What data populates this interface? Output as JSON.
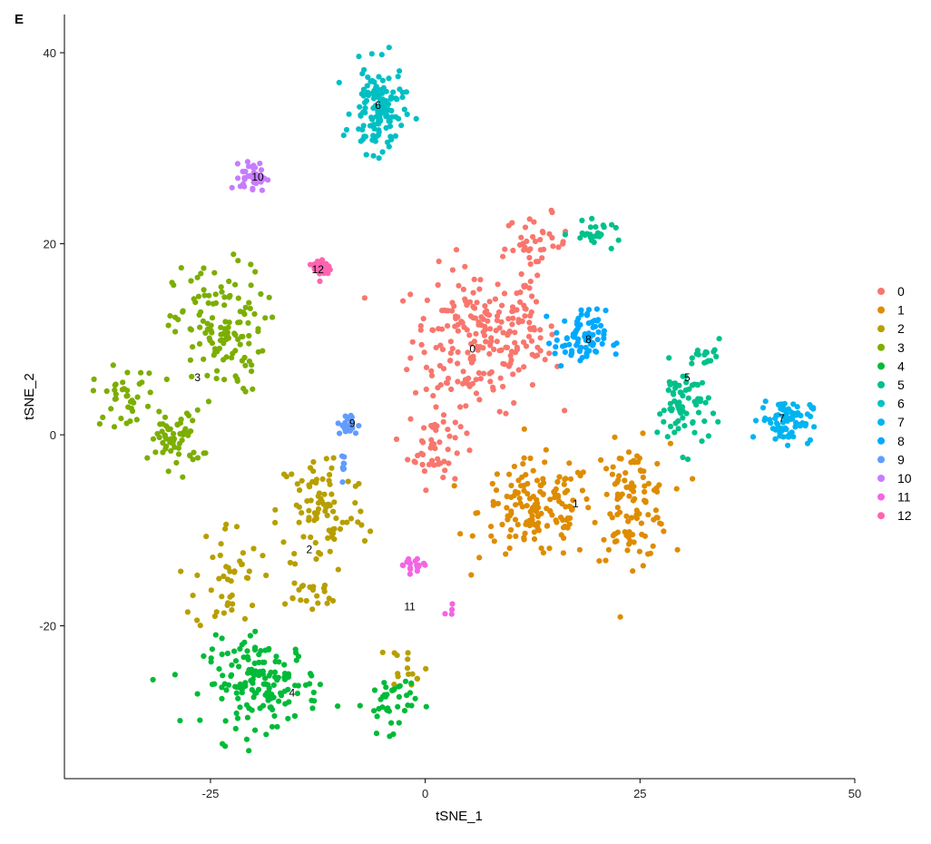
{
  "panel_label": "E",
  "chart_data": {
    "type": "scatter",
    "xlabel": "tSNE_1",
    "ylabel": "tSNE_2",
    "xlim": [
      -42,
      50
    ],
    "ylim": [
      -36,
      44
    ],
    "xticks": [
      -25,
      0,
      25,
      50
    ],
    "yticks": [
      -20,
      0,
      20,
      40
    ],
    "grid": false,
    "legend_position": "right",
    "legend": [
      "0",
      "1",
      "2",
      "3",
      "4",
      "5",
      "6",
      "7",
      "8",
      "9",
      "10",
      "11",
      "12"
    ],
    "point_labels": [
      {
        "label": "0",
        "x": 5.5,
        "y": 9.0
      },
      {
        "label": "1",
        "x": 17.5,
        "y": -7.2
      },
      {
        "label": "2",
        "x": -13.5,
        "y": -12.0
      },
      {
        "label": "3",
        "x": -26.5,
        "y": 6.0
      },
      {
        "label": "4",
        "x": -15.5,
        "y": -27.0
      },
      {
        "label": "5",
        "x": 30.5,
        "y": 6.0
      },
      {
        "label": "6",
        "x": -5.5,
        "y": 34.5
      },
      {
        "label": "7",
        "x": 41.5,
        "y": 1.7
      },
      {
        "label": "8",
        "x": 19.0,
        "y": 10.0
      },
      {
        "label": "9",
        "x": -8.5,
        "y": 1.2
      },
      {
        "label": "10",
        "x": -19.5,
        "y": 27.0
      },
      {
        "label": "11",
        "x": -1.8,
        "y": -18.0
      },
      {
        "label": "12",
        "x": -12.5,
        "y": 17.3
      }
    ],
    "series": [
      {
        "name": "0",
        "color": "#F8766D",
        "clusters": [
          {
            "cx": 6,
            "cy": 10,
            "sx": 5,
            "sy": 5,
            "n": 200
          },
          {
            "cx": 1,
            "cy": -1,
            "sx": 2,
            "sy": 3,
            "n": 50
          },
          {
            "cx": 13,
            "cy": 20,
            "sx": 2.5,
            "sy": 2,
            "n": 40
          },
          {
            "cx": 12,
            "cy": 11,
            "sx": 2,
            "sy": 2,
            "n": 30
          }
        ]
      },
      {
        "name": "1",
        "color": "#DE8C00",
        "clusters": [
          {
            "cx": 13,
            "cy": -8,
            "sx": 4.5,
            "sy": 3.5,
            "n": 150
          },
          {
            "cx": 24,
            "cy": -7,
            "sx": 3,
            "sy": 4,
            "n": 110
          }
        ]
      },
      {
        "name": "2",
        "color": "#B79F00",
        "clusters": [
          {
            "cx": -12,
            "cy": -8,
            "sx": 3.5,
            "sy": 4.5,
            "n": 90
          },
          {
            "cx": -23,
            "cy": -15,
            "sx": 2.5,
            "sy": 4,
            "n": 45
          },
          {
            "cx": -2,
            "cy": -24,
            "sx": 1.5,
            "sy": 1.5,
            "n": 15
          },
          {
            "cx": -14,
            "cy": -17,
            "sx": 3,
            "sy": 1.5,
            "n": 20
          }
        ]
      },
      {
        "name": "3",
        "color": "#7CAE00",
        "clusters": [
          {
            "cx": -24,
            "cy": 11,
            "sx": 3.5,
            "sy": 4.5,
            "n": 130
          },
          {
            "cx": -29,
            "cy": -0.5,
            "sx": 2,
            "sy": 2,
            "n": 60
          },
          {
            "cx": -35,
            "cy": 4,
            "sx": 2.5,
            "sy": 2,
            "n": 40
          }
        ]
      },
      {
        "name": "4",
        "color": "#00BA38",
        "clusters": [
          {
            "cx": -19,
            "cy": -26,
            "sx": 4.5,
            "sy": 3,
            "n": 160
          },
          {
            "cx": -4,
            "cy": -28,
            "sx": 2,
            "sy": 2,
            "n": 40
          }
        ]
      },
      {
        "name": "5",
        "color": "#00C08B",
        "clusters": [
          {
            "cx": 30,
            "cy": 3,
            "sx": 2,
            "sy": 3,
            "n": 70
          },
          {
            "cx": 20,
            "cy": 21,
            "sx": 2,
            "sy": 0.8,
            "n": 25
          },
          {
            "cx": 33,
            "cy": 8,
            "sx": 1,
            "sy": 1.2,
            "n": 15
          }
        ]
      },
      {
        "name": "6",
        "color": "#00BFC4",
        "clusters": [
          {
            "cx": -5.5,
            "cy": 34,
            "sx": 2,
            "sy": 3,
            "n": 130
          }
        ]
      },
      {
        "name": "7",
        "color": "#00B4F0",
        "clusters": [
          {
            "cx": 42,
            "cy": 1.5,
            "sx": 2,
            "sy": 1.5,
            "n": 80
          }
        ]
      },
      {
        "name": "8",
        "color": "#00A9FF",
        "clusters": [
          {
            "cx": 18,
            "cy": 10,
            "sx": 2,
            "sy": 2,
            "n": 80
          }
        ]
      },
      {
        "name": "9",
        "color": "#619CFF",
        "clusters": [
          {
            "cx": -9,
            "cy": 1,
            "sx": 0.8,
            "sy": 0.8,
            "n": 25
          },
          {
            "cx": -9.5,
            "cy": -3,
            "sx": 0.3,
            "sy": 1.2,
            "n": 8
          }
        ]
      },
      {
        "name": "10",
        "color": "#C77CFF",
        "clusters": [
          {
            "cx": -20,
            "cy": 27,
            "sx": 1,
            "sy": 1,
            "n": 40
          }
        ]
      },
      {
        "name": "11",
        "color": "#F564E3",
        "clusters": [
          {
            "cx": -1.5,
            "cy": -13.5,
            "sx": 1,
            "sy": 0.6,
            "n": 18
          },
          {
            "cx": 3,
            "cy": -18.5,
            "sx": 0.5,
            "sy": 0.5,
            "n": 4
          }
        ]
      },
      {
        "name": "12",
        "color": "#FF64B0",
        "clusters": [
          {
            "cx": -12,
            "cy": 17.5,
            "sx": 0.7,
            "sy": 0.8,
            "n": 30
          }
        ]
      }
    ]
  }
}
